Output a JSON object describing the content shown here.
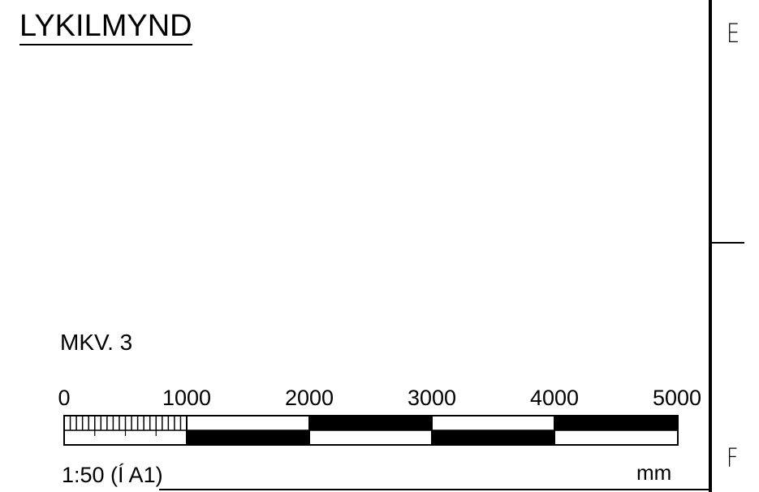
{
  "title": "LYKILMYND",
  "scale_bar": {
    "label": "MKV. 3",
    "ticks": [
      "0",
      "1000",
      "2000",
      "3000",
      "4000",
      "5000"
    ],
    "ratio": "1:50 (Í A1)",
    "unit": "mm"
  },
  "grid_labels": {
    "upper": "E",
    "lower": "F"
  }
}
